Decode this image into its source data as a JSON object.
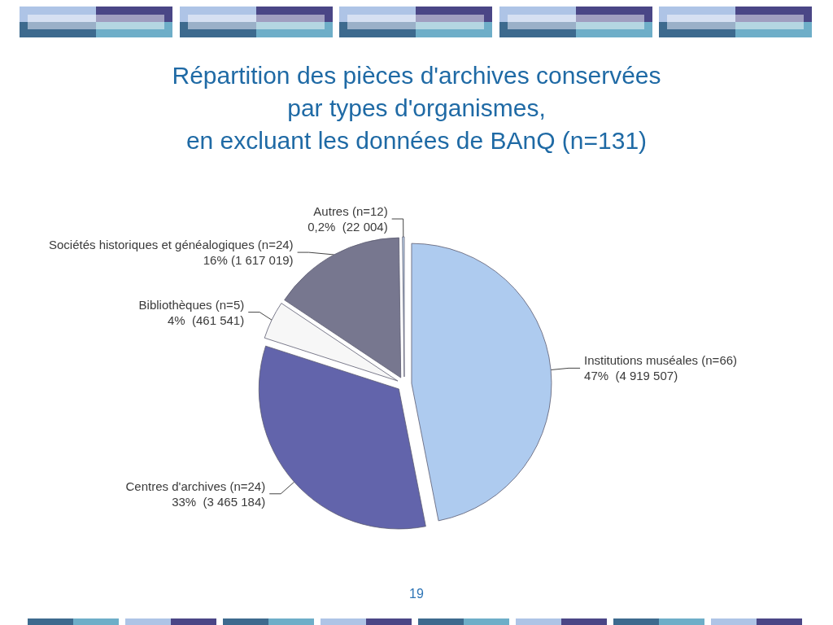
{
  "chart_data": {
    "type": "pie",
    "title": "Répartition des pièces d'archives conservées\npar types d'organismes,\nen excluant les données de BAnQ (n=131)",
    "categories": [
      "Institutions muséales (n=66)",
      "Centres d'archives (n=24)",
      "Bibliothèques (n=5)",
      "Sociétés historiques et généalogiques (n=24)",
      "Autres (n=12)"
    ],
    "values": [
      4919507,
      3465184,
      461541,
      1617019,
      22004
    ],
    "value_labels": [
      "47%  (4 919 507)",
      "33%  (3 465 184)",
      "4%  (461 541)",
      "16% (1 617 019)",
      "0,2%  (22 004)"
    ],
    "colors": [
      "#aecbef",
      "#6264ab",
      "#f7f7f7",
      "#77778f",
      "#c6dcf2"
    ],
    "legend": false,
    "annotations": [
      "19"
    ]
  }
}
